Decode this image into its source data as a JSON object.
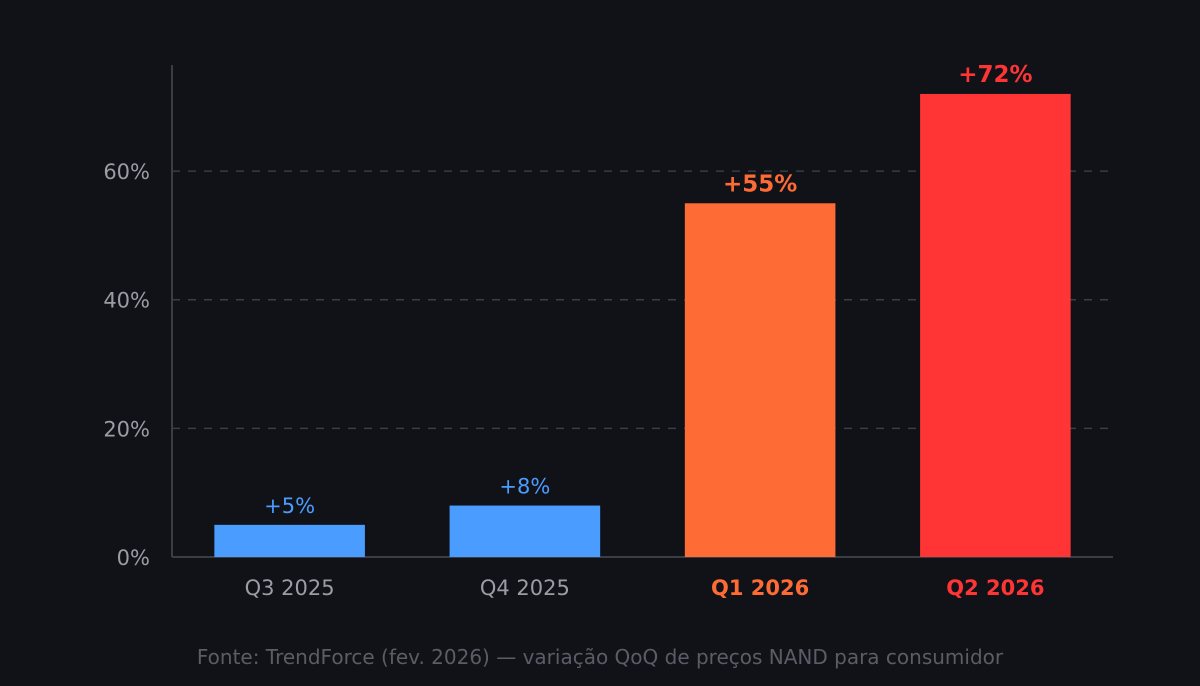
{
  "chart_data": {
    "type": "bar",
    "categories": [
      "Q3 2025",
      "Q4 2025",
      "Q1 2026",
      "Q2 2026"
    ],
    "values": [
      5,
      8,
      55,
      72
    ],
    "value_labels": [
      "+5%",
      "+8%",
      "+55%",
      "+72%"
    ],
    "bar_colors": [
      "#4a9cff",
      "#4a9cff",
      "#ff6b35",
      "#ff3535"
    ],
    "category_label_colors": [
      "#9a9da6",
      "#9a9da6",
      "#ff6b35",
      "#ff3535"
    ],
    "value_label_emphasis": [
      false,
      false,
      true,
      true
    ],
    "yticks": [
      0,
      20,
      40,
      60
    ],
    "ytick_labels": [
      "0%",
      "20%",
      "40%",
      "60%"
    ],
    "ylim": [
      0,
      76.5
    ],
    "grid": "horizontal-dashed",
    "title": "",
    "xlabel": "",
    "ylabel": ""
  },
  "source_note": "Fonte: TrendForce (fev. 2026) — variação QoQ de preços NAND para consumidor",
  "colors": {
    "background": "#111218",
    "axis": "#3a3d46",
    "grid": "#3a3d46",
    "tick_label": "#9a9da6",
    "source_note": "#5a5d66"
  }
}
